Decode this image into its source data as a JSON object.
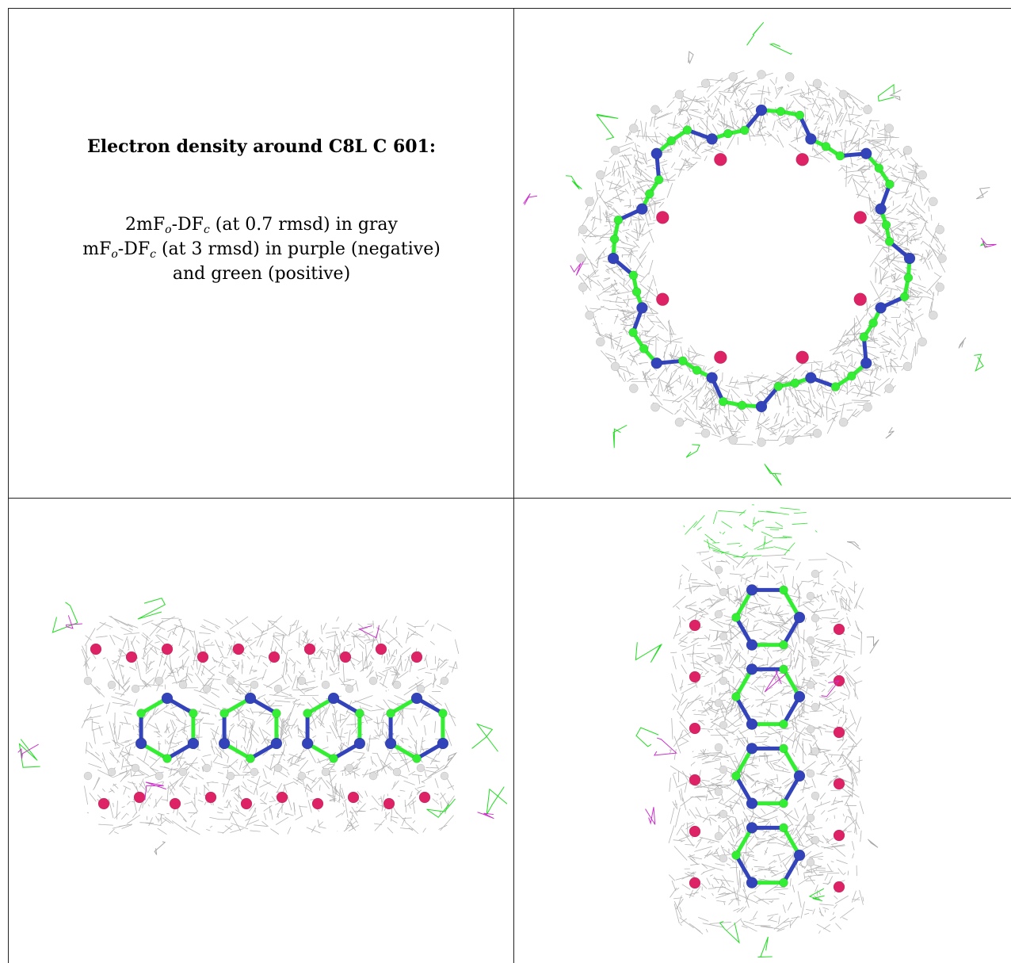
{
  "caption": {
    "title": "Electron density around C8L C 601:",
    "line1": {
      "prefix": "2mF",
      "sub1": "o",
      "mid": "-DF",
      "sub2": "c",
      "suffix": " (at 0.7 rmsd) in gray"
    },
    "line2": {
      "prefix": "mF",
      "sub1": "o",
      "mid": "-DF",
      "sub2": "c",
      "suffix": " (at 3 rmsd) in purple (negative)"
    },
    "line3": "and green (positive)"
  },
  "colors": {
    "mesh_gray": "#a8a8a8",
    "mesh_green": "#22dd22",
    "mesh_purple": "#cc33cc",
    "carbon": "#33ee33",
    "nitrogen": "#3344bb",
    "oxygen": "#dd2266",
    "hydrogen": "#dddddd",
    "border": "#222222"
  },
  "panels": [
    {
      "name": "top-view",
      "icon": "molecule-ring-view"
    },
    {
      "name": "side-view",
      "icon": "molecule-side-view"
    },
    {
      "name": "end-view",
      "icon": "molecule-end-view"
    }
  ]
}
